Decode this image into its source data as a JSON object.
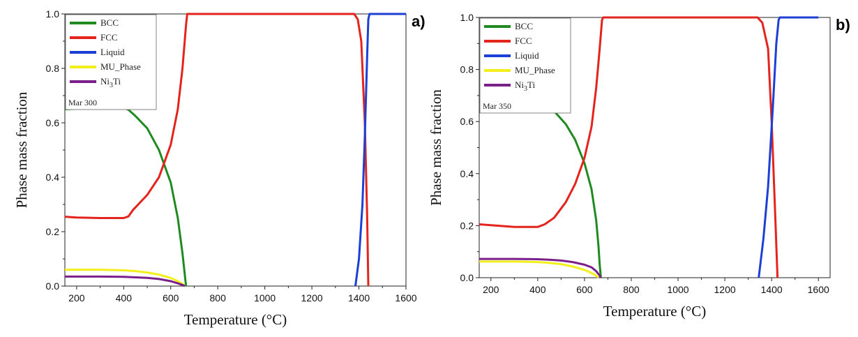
{
  "chart_data": [
    {
      "type": "line",
      "panel_label": "a)",
      "note": "Mar 300",
      "xlabel": "Temperature (°C)",
      "ylabel": "Phase mass fraction",
      "xlim": [
        150,
        1600
      ],
      "ylim": [
        0,
        1.0
      ],
      "xticks": [
        200,
        400,
        600,
        800,
        1000,
        1200,
        1400,
        1600
      ],
      "yticks": [
        0.0,
        0.2,
        0.4,
        0.6,
        0.8,
        1.0
      ],
      "legend_position": "top-left",
      "grid": false,
      "series": [
        {
          "name": "BCC",
          "color": "#1f8a1f",
          "points": [
            [
              150,
              0.65
            ],
            [
              200,
              0.652
            ],
            [
              300,
              0.655
            ],
            [
              350,
              0.658
            ],
            [
              400,
              0.655
            ],
            [
              420,
              0.648
            ],
            [
              450,
              0.625
            ],
            [
              500,
              0.58
            ],
            [
              550,
              0.5
            ],
            [
              600,
              0.38
            ],
            [
              630,
              0.25
            ],
            [
              650,
              0.12
            ],
            [
              660,
              0.04
            ],
            [
              665,
              0.0
            ]
          ]
        },
        {
          "name": "FCC",
          "color": "#e3231c",
          "points": [
            [
              150,
              0.255
            ],
            [
              200,
              0.252
            ],
            [
              300,
              0.25
            ],
            [
              400,
              0.25
            ],
            [
              420,
              0.256
            ],
            [
              440,
              0.28
            ],
            [
              500,
              0.335
            ],
            [
              550,
              0.4
            ],
            [
              600,
              0.52
            ],
            [
              630,
              0.65
            ],
            [
              650,
              0.8
            ],
            [
              665,
              0.96
            ],
            [
              670,
              1.0
            ],
            [
              1380,
              1.0
            ],
            [
              1395,
              0.98
            ],
            [
              1410,
              0.9
            ],
            [
              1425,
              0.6
            ],
            [
              1435,
              0.25
            ],
            [
              1440,
              0.0
            ]
          ]
        },
        {
          "name": "Liquid",
          "color": "#1c3fd6",
          "points": [
            [
              1385,
              0.0
            ],
            [
              1400,
              0.1
            ],
            [
              1415,
              0.3
            ],
            [
              1425,
              0.55
            ],
            [
              1435,
              0.85
            ],
            [
              1440,
              0.98
            ],
            [
              1445,
              1.0
            ],
            [
              1600,
              1.0
            ]
          ]
        },
        {
          "name": "MU_Phase",
          "color": "#f2ef1a",
          "points": [
            [
              150,
              0.06
            ],
            [
              300,
              0.06
            ],
            [
              400,
              0.058
            ],
            [
              450,
              0.055
            ],
            [
              500,
              0.05
            ],
            [
              550,
              0.042
            ],
            [
              600,
              0.03
            ],
            [
              630,
              0.018
            ],
            [
              650,
              0.008
            ],
            [
              660,
              0.0
            ]
          ]
        },
        {
          "name": "Ni3Ti",
          "color": "#7b1f8a",
          "points": [
            [
              150,
              0.035
            ],
            [
              300,
              0.035
            ],
            [
              400,
              0.034
            ],
            [
              450,
              0.032
            ],
            [
              500,
              0.03
            ],
            [
              550,
              0.026
            ],
            [
              600,
              0.018
            ],
            [
              630,
              0.01
            ],
            [
              650,
              0.004
            ],
            [
              660,
              0.0
            ]
          ]
        }
      ],
      "legend_labels": [
        "BCC",
        "FCC",
        "Liquid",
        "MU_Phase",
        "Ni3Ti"
      ]
    },
    {
      "type": "line",
      "panel_label": "b)",
      "note": "Mar 350",
      "xlabel": "Temperature (°C)",
      "ylabel": "Phase mass fraction",
      "xlim": [
        150,
        1650
      ],
      "ylim": [
        0,
        1.0
      ],
      "xticks": [
        200,
        400,
        600,
        800,
        1000,
        1200,
        1400,
        1600
      ],
      "yticks": [
        0.0,
        0.2,
        0.4,
        0.6,
        0.8,
        1.0
      ],
      "legend_position": "top-left",
      "grid": false,
      "series": [
        {
          "name": "BCC",
          "color": "#1f8a1f",
          "points": [
            [
              150,
              0.665
            ],
            [
              200,
              0.668
            ],
            [
              300,
              0.672
            ],
            [
              400,
              0.675
            ],
            [
              430,
              0.668
            ],
            [
              470,
              0.64
            ],
            [
              520,
              0.59
            ],
            [
              560,
              0.53
            ],
            [
              600,
              0.44
            ],
            [
              630,
              0.34
            ],
            [
              650,
              0.22
            ],
            [
              660,
              0.12
            ],
            [
              665,
              0.05
            ],
            [
              670,
              0.0
            ]
          ]
        },
        {
          "name": "FCC",
          "color": "#e3231c",
          "points": [
            [
              150,
              0.205
            ],
            [
              200,
              0.202
            ],
            [
              300,
              0.195
            ],
            [
              400,
              0.195
            ],
            [
              430,
              0.205
            ],
            [
              470,
              0.23
            ],
            [
              520,
              0.29
            ],
            [
              560,
              0.36
            ],
            [
              600,
              0.46
            ],
            [
              630,
              0.58
            ],
            [
              650,
              0.73
            ],
            [
              665,
              0.88
            ],
            [
              675,
              0.99
            ],
            [
              680,
              1.0
            ],
            [
              1340,
              1.0
            ],
            [
              1360,
              0.98
            ],
            [
              1385,
              0.88
            ],
            [
              1400,
              0.6
            ],
            [
              1415,
              0.25
            ],
            [
              1425,
              0.0
            ]
          ]
        },
        {
          "name": "Liquid",
          "color": "#1c3fd6",
          "points": [
            [
              1345,
              0.0
            ],
            [
              1365,
              0.15
            ],
            [
              1385,
              0.35
            ],
            [
              1405,
              0.65
            ],
            [
              1420,
              0.9
            ],
            [
              1430,
              0.99
            ],
            [
              1435,
              1.0
            ],
            [
              1600,
              1.0
            ]
          ]
        },
        {
          "name": "MU_Phase",
          "color": "#f2ef1a",
          "points": [
            [
              150,
              0.062
            ],
            [
              300,
              0.062
            ],
            [
              400,
              0.06
            ],
            [
              450,
              0.057
            ],
            [
              500,
              0.052
            ],
            [
              550,
              0.043
            ],
            [
              600,
              0.03
            ],
            [
              630,
              0.018
            ],
            [
              650,
              0.008
            ],
            [
              660,
              0.0
            ]
          ]
        },
        {
          "name": "Ni3Ti",
          "color": "#7b1f8a",
          "points": [
            [
              150,
              0.072
            ],
            [
              300,
              0.072
            ],
            [
              400,
              0.071
            ],
            [
              450,
              0.069
            ],
            [
              500,
              0.066
            ],
            [
              550,
              0.06
            ],
            [
              600,
              0.05
            ],
            [
              630,
              0.04
            ],
            [
              650,
              0.025
            ],
            [
              665,
              0.008
            ],
            [
              670,
              0.0
            ]
          ]
        }
      ],
      "legend_labels": [
        "BCC",
        "FCC",
        "Liquid",
        "MU_Phase",
        "Ni3Ti"
      ]
    }
  ]
}
